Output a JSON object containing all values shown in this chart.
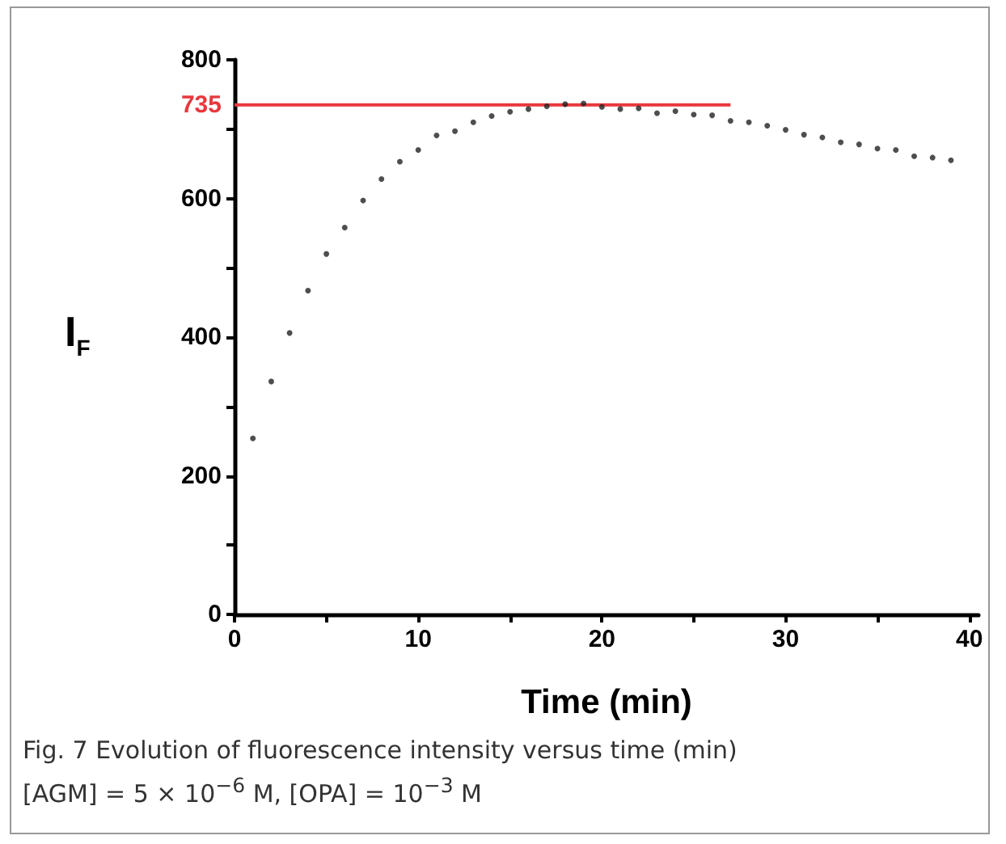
{
  "chart_data": {
    "type": "scatter",
    "xlabel": "Time (min)",
    "ylabel": "I$_{F}$",
    "x": [
      1,
      2,
      3,
      4,
      5,
      6,
      7,
      8,
      9,
      10,
      11,
      12,
      13,
      14,
      15,
      16,
      17,
      18,
      19,
      20,
      21,
      22,
      23,
      24,
      25,
      26,
      27,
      28,
      29,
      30,
      31,
      32,
      33,
      34,
      35,
      36,
      37,
      38,
      39
    ],
    "series": [
      {
        "color": "#222222",
        "values": [
          254,
          336,
          406,
          467,
          520,
          558,
          597,
          628,
          653,
          670,
          691,
          697,
          710,
          719,
          725,
          729,
          733,
          736,
          737,
          732,
          729,
          730,
          723,
          726,
          721,
          720,
          712,
          710,
          705,
          699,
          692,
          688,
          681,
          678,
          672,
          670,
          661,
          659,
          655
        ]
      },
      {
        "type": "line",
        "color": "#e8383d",
        "x": [
          0,
          27
        ],
        "values": [
          735,
          735
        ],
        "marker": "none"
      }
    ],
    "xlim": [
      0,
      40.5
    ],
    "xticks": [
      0,
      {
        "value": 5,
        "label": null
      },
      10,
      {
        "value": 15,
        "label": null
      },
      20,
      {
        "value": 25,
        "label": null
      },
      30,
      {
        "value": 35,
        "label": null
      },
      40
    ],
    "ylim": [
      0,
      800
    ],
    "yticks": [
      0,
      {
        "value": 100,
        "label": null
      },
      200,
      {
        "value": 300,
        "label": null
      },
      400,
      {
        "value": 500,
        "label": null
      },
      600,
      {
        "value": 700,
        "label": null
      },
      800
    ],
    "marker": "circle",
    "grid": false,
    "annotations": [
      {
        "text": "735",
        "x": 0,
        "y": 735
      },
      "Fig. 7 Evolution of fluorescence intensity versus time (min) [AGM] = 5 × 10$^{−6}$ M,     [OPA] = 10$^{−3}$ M"
    ]
  }
}
